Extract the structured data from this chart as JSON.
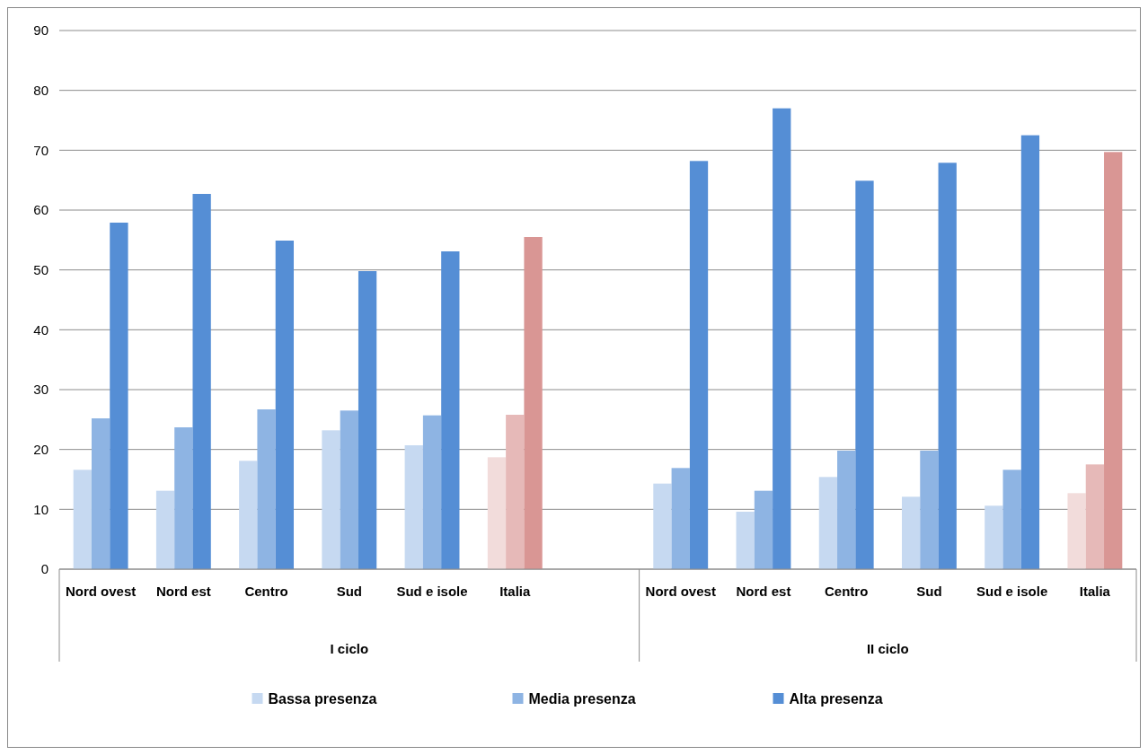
{
  "chart_data": {
    "type": "bar",
    "categories": [
      "Nord ovest",
      "Nord est",
      "Centro",
      "Sud",
      "Sud e isole",
      "Italia",
      null,
      "Nord ovest",
      "Nord est",
      "Centro",
      "Sud",
      "Sud e isole",
      "Italia"
    ],
    "series": [
      {
        "name": "Bassa presenza",
        "color": "#c6d9f1",
        "colors": [
          "#c6d9f1",
          "#c6d9f1",
          "#c6d9f1",
          "#c6d9f1",
          "#c6d9f1",
          "#f2dcdb",
          null,
          "#c6d9f1",
          "#c6d9f1",
          "#c6d9f1",
          "#c6d9f1",
          "#c6d9f1",
          "#f2dcdb"
        ],
        "values": [
          16.6,
          13.1,
          18.1,
          23.2,
          20.7,
          18.7,
          null,
          14.3,
          9.6,
          15.4,
          12.1,
          10.6,
          12.7
        ]
      },
      {
        "name": "Media presenza",
        "color": "#8eb4e3",
        "colors": [
          "#8eb4e3",
          "#8eb4e3",
          "#8eb4e3",
          "#8eb4e3",
          "#8eb4e3",
          "#e6b9b8",
          null,
          "#8eb4e3",
          "#8eb4e3",
          "#8eb4e3",
          "#8eb4e3",
          "#8eb4e3",
          "#e6b9b8"
        ],
        "values": [
          25.2,
          23.7,
          26.7,
          26.5,
          25.7,
          25.8,
          null,
          16.9,
          13.1,
          19.8,
          19.8,
          16.6,
          17.5
        ]
      },
      {
        "name": "Alta presenza",
        "color": "#558ed5",
        "colors": [
          "#558ed5",
          "#558ed5",
          "#558ed5",
          "#558ed5",
          "#558ed5",
          "#d99694",
          null,
          "#558ed5",
          "#558ed5",
          "#558ed5",
          "#558ed5",
          "#558ed5",
          "#d99694"
        ],
        "values": [
          57.9,
          62.7,
          54.9,
          49.8,
          53.1,
          55.5,
          null,
          68.2,
          77.0,
          64.9,
          67.9,
          72.5,
          69.7
        ]
      }
    ],
    "annotations": [
      "I ciclo",
      "II ciclo"
    ],
    "ylim": [
      0,
      90
    ],
    "yticks": [
      0,
      10,
      20,
      30,
      40,
      50,
      60,
      70,
      80,
      90
    ],
    "grid": "y",
    "legend": "bottom"
  }
}
